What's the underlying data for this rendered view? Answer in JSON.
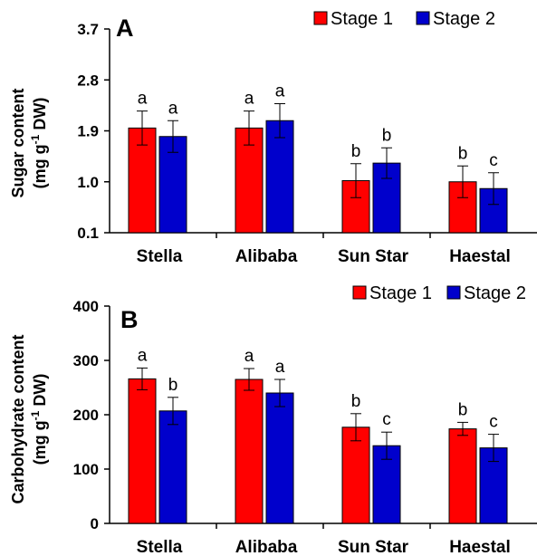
{
  "chart_data": [
    {
      "type": "bar",
      "panel_label": "A",
      "ylabel_line1": "Sugar content",
      "ylabel_line2_pre": "(mg g",
      "ylabel_line2_sup": "-1",
      "ylabel_line2_post": " DW)",
      "categories": [
        "Stella",
        "Alibaba",
        "Sun Star",
        "Haestal"
      ],
      "ylim": [
        0.1,
        3.7
      ],
      "yticks": [
        0.1,
        1.0,
        1.9,
        2.8,
        3.7
      ],
      "ytick_labels": [
        "0.1",
        "1.0",
        "1.9",
        "2.8",
        "3.7"
      ],
      "legend_position": "top-right",
      "grid": false,
      "series": [
        {
          "name": "Stage 1",
          "color": "#ff0000",
          "values": [
            1.95,
            1.95,
            1.02,
            1.0
          ],
          "errors": [
            0.3,
            0.3,
            0.3,
            0.28
          ],
          "labels": [
            "a",
            "a",
            "b",
            "b"
          ]
        },
        {
          "name": "Stage 2",
          "color": "#0000cc",
          "values": [
            1.8,
            2.08,
            1.33,
            0.88
          ],
          "errors": [
            0.28,
            0.3,
            0.27,
            0.28
          ],
          "labels": [
            "a",
            "a",
            "b",
            "c"
          ]
        }
      ]
    },
    {
      "type": "bar",
      "panel_label": "B",
      "ylabel_line1": "Carbohydrate content",
      "ylabel_line2_pre": "(mg g",
      "ylabel_line2_sup": "-1",
      "ylabel_line2_post": " DW)",
      "categories": [
        "Stella",
        "Alibaba",
        "Sun Star",
        "Haestal"
      ],
      "ylim": [
        0,
        400
      ],
      "yticks": [
        0,
        100,
        200,
        300,
        400
      ],
      "ytick_labels": [
        "0",
        "100",
        "200",
        "300",
        "400"
      ],
      "legend_position": "top-right",
      "grid": false,
      "series": [
        {
          "name": "Stage 1",
          "color": "#ff0000",
          "values": [
            266,
            265,
            177,
            174
          ],
          "errors": [
            20,
            20,
            25,
            12
          ],
          "labels": [
            "a",
            "a",
            "b",
            "b"
          ]
        },
        {
          "name": "Stage 2",
          "color": "#0000cc",
          "values": [
            207,
            240,
            143,
            139
          ],
          "errors": [
            25,
            25,
            25,
            25
          ],
          "labels": [
            "b",
            "a",
            "c",
            "c"
          ]
        }
      ]
    }
  ]
}
